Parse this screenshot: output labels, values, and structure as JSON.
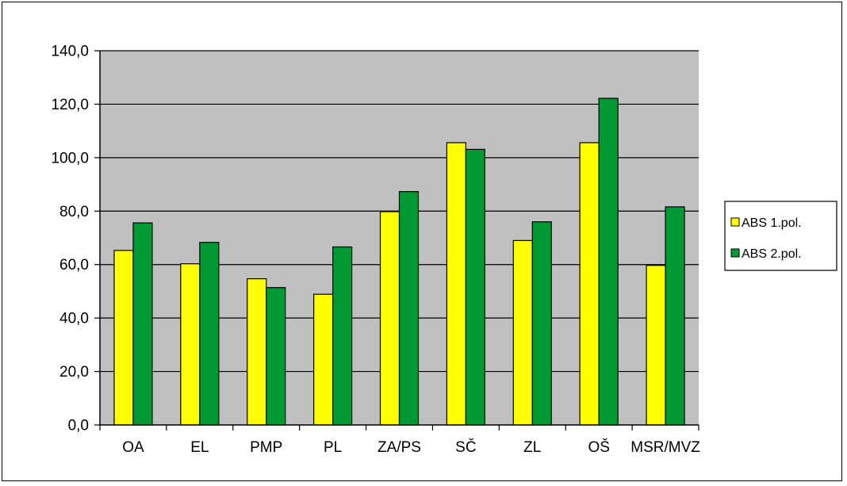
{
  "chart_data": {
    "type": "bar",
    "categories": [
      "OA",
      "EL",
      "PMP",
      "PL",
      "ZA/PS",
      "SČ",
      "ZL",
      "OŠ",
      "MSR/MVZ"
    ],
    "series": [
      {
        "name": "ABS 1.pol.",
        "color": "#ffff00",
        "values": [
          65.3,
          60.3,
          54.7,
          48.9,
          79.8,
          105.6,
          69.0,
          105.6,
          59.7
        ]
      },
      {
        "name": "ABS 2.pol.",
        "color": "#009933",
        "values": [
          75.6,
          68.3,
          51.4,
          66.6,
          87.3,
          103.1,
          76.0,
          122.2,
          81.6
        ]
      }
    ],
    "y_ticks": [
      "0,0",
      "20,0",
      "40,0",
      "60,0",
      "80,0",
      "100,0",
      "120,0",
      "140,0"
    ],
    "ylim": [
      0,
      140
    ],
    "grid": true,
    "plot_background": "#c0c0c0",
    "legend": {
      "position": "right"
    }
  }
}
